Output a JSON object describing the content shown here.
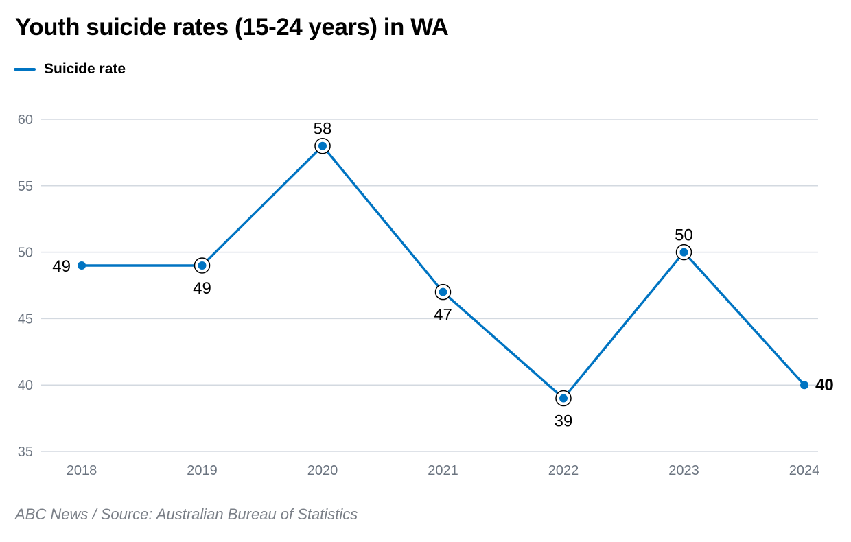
{
  "chart_data": {
    "type": "line",
    "title": "Youth suicide rates (15-24 years) in WA",
    "xlabel": "",
    "ylabel": "",
    "x": [
      "2018",
      "2019",
      "2020",
      "2021",
      "2022",
      "2023",
      "2024"
    ],
    "series": [
      {
        "name": "Suicide rate",
        "values": [
          49,
          49,
          58,
          47,
          39,
          50,
          40
        ],
        "color": "#0074c2"
      }
    ],
    "ylim": [
      35,
      60
    ],
    "yticks": [
      35,
      40,
      45,
      50,
      55,
      60
    ],
    "grid": true,
    "legend": "top-left",
    "source": "ABC News / Source: Australian Bureau of Statistics"
  }
}
